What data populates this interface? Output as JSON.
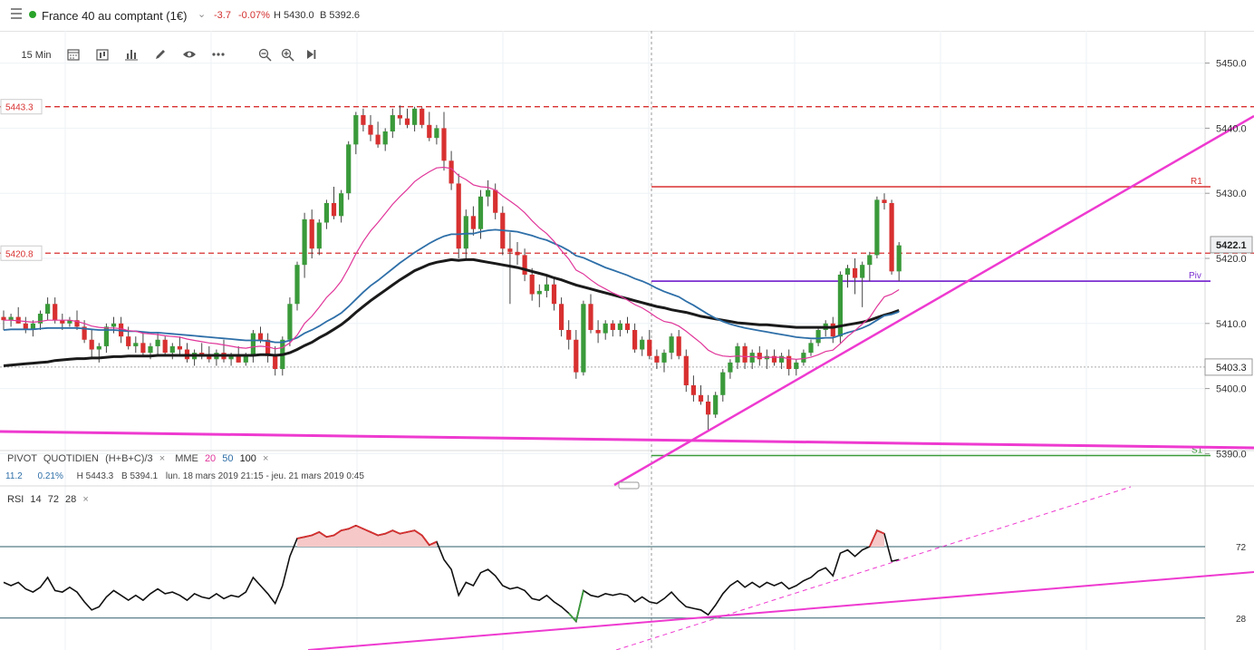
{
  "header": {
    "menu_icon": "menu-icon",
    "status_color": "#2aa32a",
    "instrument": "France 40 au comptant (1€)",
    "change_abs": "-3.7",
    "change_pct": "-0.07%",
    "high": "H 5430.0",
    "low": "B 5392.6"
  },
  "toolbar": {
    "interval": "15 Min",
    "icons": [
      "calendar-icon",
      "candle-style-icon",
      "bar-chart-icon",
      "pencil-icon",
      "eye-icon",
      "more-icon",
      "zoom-out-icon",
      "zoom-in-icon",
      "play-icon"
    ]
  },
  "legend": {
    "pivot": "PIVOT",
    "pivot_period": "QUOTIDIEN",
    "pivot_formula": "(H+B+C)/3",
    "mme": "MME",
    "mme_20": "20",
    "mme_50": "50",
    "mme_100": "100",
    "close": "×"
  },
  "info_row": {
    "value": "11.2",
    "pct": "0.21%",
    "high": "H 5443.3",
    "low": "B 5394.1",
    "range": "lun. 18 mars 2019 21:15 - jeu. 21 mars 2019 0:45"
  },
  "rsi_legend": {
    "name": "RSI",
    "p1": "14",
    "p2": "72",
    "p3": "28",
    "close": "×"
  },
  "colors": {
    "up": "#3a9a3a",
    "down": "#d83030",
    "mme20": "#e0369a",
    "mme50": "#2e6fa8",
    "mme100": "#1a1a1a",
    "pivot": "#7b2fd0",
    "r1": "#d83030",
    "s1": "#3a9a3a",
    "trend": "#ee3ad0"
  },
  "chart_data": {
    "type": "candlestick",
    "price_axis": {
      "ticks": [
        "5450.0",
        "5440.0",
        "5430.0",
        "5420.0",
        "5410.0",
        "5400.0",
        "5390.0"
      ],
      "range": [
        5386,
        5453
      ]
    },
    "levels": {
      "high_line": {
        "label": "5443.3",
        "value": 5443.3
      },
      "ref_line": {
        "label": "5420.8",
        "value": 5420.8
      },
      "last_price": {
        "label": "5422.1",
        "value": 5422.1
      },
      "crosshair": {
        "label": "5403.3",
        "value": 5403.3
      },
      "R1": {
        "label": "R1",
        "value": 5431.0
      },
      "Piv": {
        "label": "Piv",
        "value": 5416.5
      },
      "S1": {
        "label": "S1",
        "value": 5389.7
      }
    },
    "candles": [
      [
        5411.0,
        5412.0,
        5409.0,
        5410.5
      ],
      [
        5410.5,
        5411.5,
        5409.5,
        5411.0
      ],
      [
        5411.0,
        5412.5,
        5410.0,
        5410.0
      ],
      [
        5410.0,
        5411.0,
        5408.5,
        5409.0
      ],
      [
        5409.0,
        5410.5,
        5408.0,
        5410.0
      ],
      [
        5410.0,
        5412.0,
        5409.0,
        5411.5
      ],
      [
        5411.5,
        5414.0,
        5410.5,
        5413.0
      ],
      [
        5413.0,
        5414.0,
        5410.0,
        5410.5
      ],
      [
        5410.5,
        5411.5,
        5409.0,
        5410.0
      ],
      [
        5410.0,
        5411.0,
        5409.5,
        5410.5
      ],
      [
        5410.5,
        5412.0,
        5409.0,
        5409.5
      ],
      [
        5409.5,
        5410.5,
        5407.0,
        5407.5
      ],
      [
        5407.5,
        5409.0,
        5404.5,
        5406.0
      ],
      [
        5406.0,
        5407.0,
        5404.0,
        5406.5
      ],
      [
        5406.5,
        5410.0,
        5405.5,
        5409.5
      ],
      [
        5409.5,
        5411.0,
        5408.5,
        5410.0
      ],
      [
        5410.0,
        5411.0,
        5407.0,
        5408.0
      ],
      [
        5408.0,
        5409.5,
        5406.0,
        5406.5
      ],
      [
        5406.5,
        5408.0,
        5405.5,
        5407.0
      ],
      [
        5407.0,
        5408.5,
        5405.0,
        5405.5
      ],
      [
        5405.5,
        5407.0,
        5404.5,
        5406.5
      ],
      [
        5406.5,
        5408.5,
        5405.0,
        5407.5
      ],
      [
        5407.5,
        5408.0,
        5405.0,
        5405.5
      ],
      [
        5405.5,
        5407.0,
        5404.5,
        5406.5
      ],
      [
        5406.5,
        5408.0,
        5405.0,
        5406.0
      ],
      [
        5406.0,
        5407.0,
        5404.0,
        5404.5
      ],
      [
        5404.5,
        5406.0,
        5403.5,
        5405.5
      ],
      [
        5405.5,
        5407.0,
        5404.5,
        5405.0
      ],
      [
        5405.0,
        5406.5,
        5404.0,
        5404.5
      ],
      [
        5404.5,
        5406.0,
        5403.5,
        5405.5
      ],
      [
        5405.5,
        5407.5,
        5404.0,
        5404.5
      ],
      [
        5404.5,
        5405.5,
        5403.5,
        5405.0
      ],
      [
        5405.0,
        5406.5,
        5404.0,
        5404.0
      ],
      [
        5404.0,
        5405.5,
        5403.5,
        5405.0
      ],
      [
        5405.0,
        5409.0,
        5404.0,
        5408.5
      ],
      [
        5408.5,
        5409.5,
        5407.0,
        5407.5
      ],
      [
        5407.5,
        5408.5,
        5404.0,
        5405.0
      ],
      [
        5405.0,
        5406.5,
        5402.0,
        5403.0
      ],
      [
        5403.0,
        5408.0,
        5402.0,
        5407.5
      ],
      [
        5407.5,
        5414.0,
        5406.5,
        5413.0
      ],
      [
        5413.0,
        5419.5,
        5412.0,
        5419.0
      ],
      [
        5419.0,
        5427.0,
        5417.0,
        5426.0
      ],
      [
        5426.0,
        5427.5,
        5420.0,
        5421.5
      ],
      [
        5421.5,
        5426.0,
        5420.5,
        5425.5
      ],
      [
        5425.5,
        5429.0,
        5424.5,
        5428.5
      ],
      [
        5428.5,
        5431.0,
        5426.0,
        5426.5
      ],
      [
        5426.5,
        5430.5,
        5425.5,
        5430.0
      ],
      [
        5430.0,
        5438.0,
        5429.0,
        5437.5
      ],
      [
        5437.5,
        5442.5,
        5436.0,
        5442.0
      ],
      [
        5442.0,
        5443.0,
        5439.5,
        5440.5
      ],
      [
        5440.5,
        5442.0,
        5438.0,
        5439.0
      ],
      [
        5439.0,
        5441.0,
        5437.0,
        5437.5
      ],
      [
        5437.5,
        5440.0,
        5436.5,
        5439.5
      ],
      [
        5439.5,
        5443.0,
        5438.5,
        5442.0
      ],
      [
        5442.0,
        5443.5,
        5440.5,
        5441.5
      ],
      [
        5441.5,
        5443.0,
        5440.0,
        5440.5
      ],
      [
        5440.5,
        5443.3,
        5439.5,
        5443.0
      ],
      [
        5443.0,
        5443.2,
        5440.0,
        5440.5
      ],
      [
        5440.5,
        5442.5,
        5438.0,
        5438.5
      ],
      [
        5438.5,
        5440.5,
        5437.5,
        5440.0
      ],
      [
        5440.0,
        5442.5,
        5433.5,
        5435.0
      ],
      [
        5435.0,
        5436.5,
        5430.5,
        5431.5
      ],
      [
        5431.5,
        5433.0,
        5420.0,
        5421.5
      ],
      [
        5421.5,
        5427.5,
        5420.0,
        5426.5
      ],
      [
        5426.5,
        5428.0,
        5423.5,
        5424.5
      ],
      [
        5424.5,
        5430.5,
        5423.0,
        5429.5
      ],
      [
        5429.5,
        5432.0,
        5428.0,
        5430.5
      ],
      [
        5430.5,
        5431.5,
        5426.0,
        5427.0
      ],
      [
        5427.0,
        5428.0,
        5420.5,
        5421.5
      ],
      [
        5421.5,
        5424.0,
        5413.0,
        5421.0
      ],
      [
        5421.0,
        5422.5,
        5419.0,
        5420.5
      ],
      [
        5420.5,
        5421.5,
        5416.5,
        5417.5
      ],
      [
        5417.5,
        5418.5,
        5413.5,
        5414.5
      ],
      [
        5414.5,
        5416.0,
        5412.5,
        5415.0
      ],
      [
        5415.0,
        5417.5,
        5414.0,
        5416.0
      ],
      [
        5416.0,
        5417.0,
        5412.0,
        5413.0
      ],
      [
        5413.0,
        5414.0,
        5408.0,
        5409.0
      ],
      [
        5409.0,
        5410.5,
        5406.0,
        5407.5
      ],
      [
        5407.5,
        5409.0,
        5401.5,
        5402.5
      ],
      [
        5402.5,
        5413.5,
        5402.0,
        5413.0
      ],
      [
        5413.0,
        5414.5,
        5408.5,
        5409.0
      ],
      [
        5409.0,
        5410.5,
        5407.0,
        5408.5
      ],
      [
        5408.5,
        5410.5,
        5407.5,
        5410.0
      ],
      [
        5410.0,
        5410.5,
        5408.0,
        5409.0
      ],
      [
        5409.0,
        5410.5,
        5408.0,
        5410.0
      ],
      [
        5410.0,
        5411.0,
        5408.5,
        5409.0
      ],
      [
        5409.0,
        5410.0,
        5405.5,
        5406.0
      ],
      [
        5406.0,
        5408.0,
        5405.0,
        5407.5
      ],
      [
        5407.5,
        5409.0,
        5404.5,
        5405.0
      ],
      [
        5405.0,
        5406.0,
        5403.0,
        5404.0
      ],
      [
        5404.0,
        5406.0,
        5402.5,
        5405.5
      ],
      [
        5405.5,
        5408.5,
        5404.5,
        5408.0
      ],
      [
        5408.0,
        5409.0,
        5404.5,
        5405.0
      ],
      [
        5405.0,
        5406.0,
        5399.5,
        5400.5
      ],
      [
        5400.5,
        5402.0,
        5398.0,
        5399.0
      ],
      [
        5399.0,
        5400.5,
        5397.5,
        5398.0
      ],
      [
        5398.0,
        5399.0,
        5393.5,
        5396.0
      ],
      [
        5396.0,
        5399.5,
        5395.5,
        5399.0
      ],
      [
        5399.0,
        5403.0,
        5398.0,
        5402.5
      ],
      [
        5402.5,
        5404.5,
        5401.5,
        5404.0
      ],
      [
        5404.0,
        5407.0,
        5403.0,
        5406.5
      ],
      [
        5406.5,
        5407.0,
        5403.0,
        5404.0
      ],
      [
        5404.0,
        5406.0,
        5403.0,
        5405.5
      ],
      [
        5405.5,
        5406.5,
        5403.5,
        5404.5
      ],
      [
        5404.5,
        5406.0,
        5403.0,
        5405.0
      ],
      [
        5405.0,
        5406.0,
        5403.5,
        5404.0
      ],
      [
        5404.0,
        5405.5,
        5403.0,
        5405.0
      ],
      [
        5405.0,
        5406.0,
        5402.0,
        5403.0
      ],
      [
        5403.0,
        5404.5,
        5402.0,
        5404.0
      ],
      [
        5404.0,
        5406.0,
        5403.5,
        5405.5
      ],
      [
        5405.5,
        5407.5,
        5405.0,
        5407.0
      ],
      [
        5407.0,
        5409.5,
        5406.5,
        5409.0
      ],
      [
        5409.0,
        5410.5,
        5408.0,
        5410.0
      ],
      [
        5410.0,
        5411.0,
        5407.0,
        5408.0
      ],
      [
        5408.0,
        5418.0,
        5407.0,
        5417.5
      ],
      [
        5417.5,
        5419.0,
        5415.5,
        5418.5
      ],
      [
        5418.5,
        5420.0,
        5414.5,
        5417.0
      ],
      [
        5417.0,
        5419.5,
        5412.5,
        5419.0
      ],
      [
        5419.0,
        5421.0,
        5416.5,
        5420.5
      ],
      [
        5420.5,
        5429.5,
        5420.0,
        5429.0
      ],
      [
        5429.0,
        5430.0,
        5427.5,
        5428.5
      ],
      [
        5428.5,
        5429.0,
        5417.5,
        5418.0
      ],
      [
        5418.0,
        5422.5,
        5416.5,
        5422.0
      ]
    ],
    "mme20": [
      5410.5,
      5410.5,
      5410.4,
      5410.3,
      5410.2,
      5410.3,
      5410.5,
      5410.5,
      5410.5,
      5410.5,
      5410.3,
      5410.0,
      5409.6,
      5409.4,
      5409.3,
      5409.3,
      5409.2,
      5408.9,
      5408.8,
      5408.5,
      5408.4,
      5408.3,
      5408.1,
      5408.0,
      5407.9,
      5407.6,
      5407.4,
      5407.2,
      5407.0,
      5406.9,
      5406.7,
      5406.5,
      5406.3,
      5406.2,
      5406.4,
      5406.5,
      5406.4,
      5406.1,
      5406.3,
      5407.0,
      5408.2,
      5410.0,
      5411.1,
      5412.5,
      5414.0,
      5415.1,
      5416.5,
      5418.5,
      5420.7,
      5422.6,
      5424.2,
      5425.5,
      5426.9,
      5428.3,
      5429.5,
      5430.6,
      5431.8,
      5432.6,
      5433.3,
      5433.9,
      5434.0,
      5433.8,
      5432.7,
      5432.1,
      5431.3,
      5431.0,
      5430.9,
      5430.5,
      5429.6,
      5428.8,
      5428.0,
      5427.0,
      5425.8,
      5424.7,
      5423.8,
      5422.6,
      5421.2,
      5419.9,
      5418.2,
      5417.6,
      5416.7,
      5415.9,
      5415.3,
      5414.7,
      5414.2,
      5413.6,
      5412.9,
      5412.4,
      5411.7,
      5410.9,
      5410.3,
      5410.1,
      5409.6,
      5408.8,
      5407.9,
      5407.0,
      5405.9,
      5405.3,
      5405.0,
      5404.9,
      5405.0,
      5404.9,
      5404.9,
      5404.8,
      5404.8,
      5404.8,
      5404.8,
      5404.6,
      5404.5,
      5404.6,
      5404.8,
      5405.2,
      5405.7,
      5405.9,
      5406.9,
      5408.0,
      5408.9,
      5409.9,
      5410.9,
      5412.6,
      5414.1,
      5414.5,
      5415.2
    ],
    "mme50": [
      5409.0,
      5409.1,
      5409.1,
      5409.1,
      5409.1,
      5409.2,
      5409.3,
      5409.3,
      5409.3,
      5409.3,
      5409.3,
      5409.2,
      5409.1,
      5409.0,
      5409.0,
      5409.0,
      5408.9,
      5408.8,
      5408.8,
      5408.7,
      5408.6,
      5408.6,
      5408.5,
      5408.4,
      5408.3,
      5408.2,
      5408.1,
      5408.0,
      5407.9,
      5407.8,
      5407.7,
      5407.6,
      5407.5,
      5407.4,
      5407.4,
      5407.4,
      5407.3,
      5407.1,
      5407.1,
      5407.4,
      5407.8,
      5408.5,
      5409.0,
      5409.6,
      5410.3,
      5410.9,
      5411.6,
      5412.6,
      5413.7,
      5414.8,
      5415.8,
      5416.6,
      5417.5,
      5418.4,
      5419.3,
      5420.1,
      5420.9,
      5421.6,
      5422.3,
      5422.9,
      5423.4,
      5423.7,
      5423.7,
      5423.8,
      5423.8,
      5424.1,
      5424.3,
      5424.4,
      5424.3,
      5424.2,
      5424.1,
      5423.8,
      5423.5,
      5423.1,
      5422.8,
      5422.3,
      5421.8,
      5421.2,
      5420.4,
      5420.1,
      5419.6,
      5419.1,
      5418.6,
      5418.2,
      5417.8,
      5417.4,
      5416.9,
      5416.5,
      5416.0,
      5415.4,
      5414.9,
      5414.5,
      5414.1,
      5413.4,
      5412.8,
      5412.1,
      5411.4,
      5410.8,
      5410.3,
      5409.9,
      5409.6,
      5409.3,
      5409.1,
      5408.9,
      5408.7,
      5408.5,
      5408.3,
      5408.1,
      5407.9,
      5407.8,
      5407.7,
      5407.7,
      5407.8,
      5407.8,
      5408.2,
      5408.6,
      5408.9,
      5409.3,
      5409.8,
      5410.5,
      5411.2,
      5411.4,
      5411.8
    ],
    "mme100": [
      5403.5,
      5403.6,
      5403.7,
      5403.8,
      5403.9,
      5404.0,
      5404.1,
      5404.3,
      5404.4,
      5404.5,
      5404.6,
      5404.6,
      5404.7,
      5404.7,
      5404.8,
      5404.9,
      5404.9,
      5405.0,
      5405.0,
      5405.0,
      5405.0,
      5405.1,
      5405.1,
      5405.1,
      5405.1,
      5405.1,
      5405.1,
      5405.1,
      5405.1,
      5405.1,
      5405.1,
      5405.1,
      5405.1,
      5405.1,
      5405.1,
      5405.2,
      5405.2,
      5405.1,
      5405.2,
      5405.5,
      5406.0,
      5406.6,
      5407.1,
      5407.8,
      5408.4,
      5409.1,
      5409.8,
      5410.7,
      5411.7,
      5412.6,
      5413.5,
      5414.3,
      5415.1,
      5415.9,
      5416.7,
      5417.4,
      5418.1,
      5418.6,
      5419.1,
      5419.4,
      5419.6,
      5419.8,
      5419.7,
      5419.8,
      5419.8,
      5419.6,
      5419.4,
      5419.2,
      5419.0,
      5418.8,
      5418.6,
      5418.3,
      5418.0,
      5417.7,
      5417.4,
      5417.0,
      5416.7,
      5416.3,
      5415.9,
      5415.6,
      5415.3,
      5415.0,
      5414.7,
      5414.4,
      5414.1,
      5413.8,
      5413.5,
      5413.2,
      5412.9,
      5412.6,
      5412.4,
      5412.1,
      5411.9,
      5411.7,
      5411.4,
      5411.1,
      5410.9,
      5410.7,
      5410.5,
      5410.3,
      5410.1,
      5410.0,
      5409.9,
      5409.8,
      5409.8,
      5409.7,
      5409.6,
      5409.5,
      5409.4,
      5409.4,
      5409.4,
      5409.4,
      5409.4,
      5409.4,
      5409.6,
      5409.8,
      5410.0,
      5410.2,
      5410.5,
      5410.9,
      5411.3,
      5411.6,
      5412.0
    ],
    "rsi": [
      50,
      48,
      50,
      46,
      44,
      47,
      53,
      45,
      44,
      47,
      44,
      38,
      33,
      35,
      41,
      45,
      42,
      39,
      42,
      39,
      43,
      46,
      43,
      44,
      42,
      39,
      43,
      41,
      40,
      43,
      40,
      42,
      41,
      44,
      53,
      48,
      43,
      37,
      48,
      66,
      77,
      78,
      79,
      81,
      78,
      79,
      82,
      83,
      85,
      83,
      81,
      79,
      80,
      82,
      80,
      81,
      82,
      79,
      73,
      75,
      64,
      58,
      42,
      50,
      48,
      56,
      58,
      54,
      48,
      46,
      47,
      45,
      40,
      39,
      42,
      38,
      35,
      31,
      26,
      45,
      42,
      41,
      43,
      42,
      43,
      42,
      38,
      41,
      38,
      37,
      40,
      44,
      39,
      35,
      34,
      33,
      30,
      36,
      43,
      48,
      51,
      47,
      50,
      47,
      50,
      48,
      50,
      46,
      48,
      51,
      53,
      57,
      59,
      54,
      68,
      70,
      66,
      70,
      72,
      82,
      80,
      63,
      64
    ],
    "rsi_levels": {
      "upper": "72",
      "lower": "28"
    }
  }
}
